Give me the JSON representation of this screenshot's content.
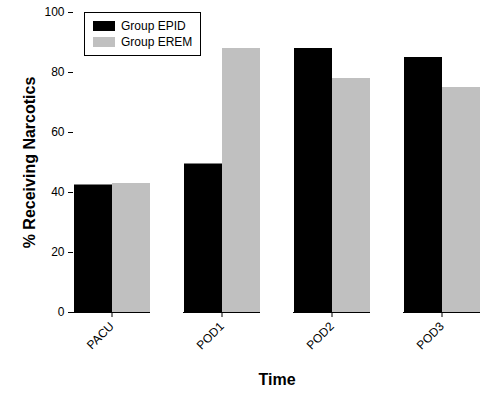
{
  "chart_data": {
    "type": "bar",
    "x_label": "Time",
    "y_label": "% Receiving Narcotics",
    "categories": [
      "PACU",
      "POD1",
      "POD2",
      "POD3"
    ],
    "series": [
      {
        "name": "Group EPID",
        "color": "#000000",
        "values": [
          42.5,
          49.5,
          88,
          85
        ]
      },
      {
        "name": "Group EREM",
        "color": "#c0c0c0",
        "values": [
          43,
          88,
          78,
          75
        ]
      }
    ],
    "ylim": [
      0,
      100
    ],
    "yticks": [
      0,
      20,
      40,
      60,
      80,
      100
    ],
    "grid": false,
    "legend": "upper left"
  }
}
